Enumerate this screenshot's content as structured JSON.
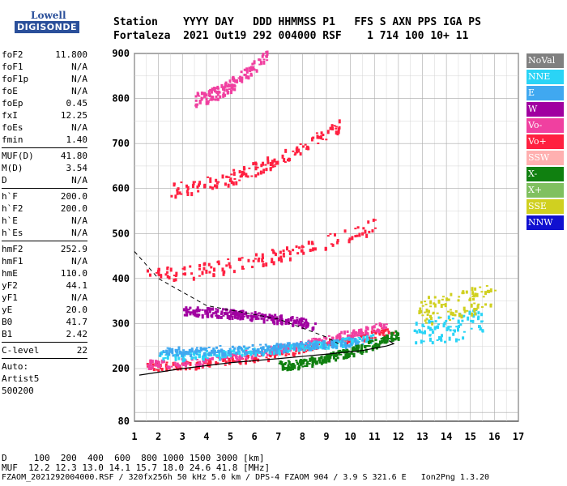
{
  "logo": {
    "top": "Lowell",
    "bottom": "DIGISONDE"
  },
  "header": {
    "line1": "Station    YYYY DAY   DDD HHMMSS P1   FFS S AXN PPS IGA PS",
    "line2": "Fortaleza  2021 Out19 292 004000 RSF    1 714 100 10+ 11"
  },
  "params": {
    "group1": [
      {
        "label": "foF2",
        "value": "11.800"
      },
      {
        "label": "foF1",
        "value": "N/A"
      },
      {
        "label": "foF1p",
        "value": "N/A"
      },
      {
        "label": "foE",
        "value": "N/A"
      },
      {
        "label": "foEp",
        "value": "0.45"
      },
      {
        "label": "fxI",
        "value": "12.25"
      },
      {
        "label": "foEs",
        "value": "N/A"
      },
      {
        "label": "fmin",
        "value": "1.40"
      }
    ],
    "group2": [
      {
        "label": "MUF(D)",
        "value": "41.80"
      },
      {
        "label": "M(D)",
        "value": "3.54"
      },
      {
        "label": "D",
        "value": "N/A"
      }
    ],
    "group3": [
      {
        "label": "h`F",
        "value": "200.0"
      },
      {
        "label": "h`F2",
        "value": "200.0"
      },
      {
        "label": "h`E",
        "value": "N/A"
      },
      {
        "label": "h`Es",
        "value": "N/A"
      }
    ],
    "group4": [
      {
        "label": "hmF2",
        "value": "252.9"
      },
      {
        "label": "hmF1",
        "value": "N/A"
      },
      {
        "label": "hmE",
        "value": "110.0"
      },
      {
        "label": "yF2",
        "value": "44.1"
      },
      {
        "label": "yF1",
        "value": "N/A"
      },
      {
        "label": "yE",
        "value": "20.0"
      },
      {
        "label": "B0",
        "value": "41.7"
      },
      {
        "label": "B1",
        "value": "2.42"
      }
    ],
    "group5": [
      {
        "label": "C-level",
        "value": "22"
      }
    ],
    "auto": [
      "Auto:",
      "Artist5",
      "500200"
    ]
  },
  "legend": [
    {
      "label": "NoVal",
      "color": "#808080"
    },
    {
      "label": "NNE",
      "color": "#2ad4f6"
    },
    {
      "label": "E",
      "color": "#40a8f0"
    },
    {
      "label": "W",
      "color": "#a000a0"
    },
    {
      "label": "Vo-",
      "color": "#f040a0"
    },
    {
      "label": "Vo+",
      "color": "#ff2040"
    },
    {
      "label": "SSW",
      "color": "#ffb0b0"
    },
    {
      "label": "X-",
      "color": "#108010"
    },
    {
      "label": "X+",
      "color": "#80c060"
    },
    {
      "label": "SSE",
      "color": "#d0d020"
    },
    {
      "label": "NNW",
      "color": "#1010d0"
    }
  ],
  "footer": {
    "line1": "D     100  200  400  600  800 1000 1500 3000 [km]",
    "line2": "MUF  12.2 12.3 13.0 14.1 15.7 18.0 24.6 41.8 [MHz]",
    "line3": "FZAOM_2021292004000.RSF / 320fx256h 50 kHz 5.0 km / DPS-4 FZAOM 904 / 3.9 S 321.6 E   Ion2Png 1.3.20"
  },
  "chart_data": {
    "type": "scatter",
    "xlabel": "",
    "ylabel": "",
    "xlim": [
      1,
      17
    ],
    "ylim": [
      80,
      900
    ],
    "x_ticks": [
      1,
      2,
      3,
      4,
      5,
      6,
      7,
      8,
      9,
      10,
      11,
      12,
      13,
      14,
      15,
      16,
      17
    ],
    "y_ticks": [
      80,
      200,
      300,
      400,
      500,
      600,
      700,
      800,
      900
    ],
    "grid": true,
    "legend_position": "right",
    "traces": [
      {
        "name": "Vo+",
        "mode": "echo",
        "start": [
          1.5,
          205
        ],
        "end": [
          11.8,
          290
        ]
      },
      {
        "name": "Vo-",
        "mode": "echo",
        "start": [
          1.5,
          212
        ],
        "end": [
          11.5,
          300
        ]
      },
      {
        "name": "NNE",
        "mode": "echo",
        "start": [
          2.0,
          230
        ],
        "end": [
          11.0,
          270
        ]
      },
      {
        "name": "E",
        "mode": "echo",
        "start": [
          2.0,
          240
        ],
        "end": [
          10.5,
          262
        ]
      },
      {
        "name": "X-",
        "mode": "echo",
        "start": [
          7.0,
          210
        ],
        "end": [
          12.0,
          280
        ]
      },
      {
        "name": "W",
        "mode": "echo",
        "start": [
          3.0,
          330
        ],
        "end": [
          8.5,
          300
        ]
      },
      {
        "name": "Vo+",
        "mode": "multi-hop",
        "start": [
          1.5,
          410
        ],
        "end": [
          11.0,
          520
        ]
      },
      {
        "name": "Vo+",
        "mode": "multi-hop",
        "start": [
          2.5,
          600
        ],
        "end": [
          9.5,
          740
        ]
      },
      {
        "name": "Vo-",
        "mode": "multi-hop",
        "start": [
          3.5,
          800
        ],
        "end": [
          6.5,
          900
        ]
      },
      {
        "name": "NNE",
        "mode": "spread",
        "start": [
          12.5,
          280
        ],
        "end": [
          15.5,
          310
        ]
      },
      {
        "name": "SSE",
        "mode": "spread",
        "start": [
          12.8,
          330
        ],
        "end": [
          16.0,
          370
        ]
      }
    ],
    "profile_curve": [
      [
        1.2,
        185
      ],
      [
        3,
        200
      ],
      [
        5,
        213
      ],
      [
        7,
        222
      ],
      [
        9,
        232
      ],
      [
        10.5,
        240
      ],
      [
        11.5,
        250
      ],
      [
        11.8,
        255
      ],
      [
        11.6,
        262
      ]
    ],
    "muf_curve": [
      [
        1,
        460
      ],
      [
        2,
        400
      ],
      [
        3,
        370
      ],
      [
        4,
        340
      ],
      [
        5,
        330
      ],
      [
        6,
        320
      ],
      [
        7,
        310
      ],
      [
        8,
        290
      ],
      [
        9,
        270
      ],
      [
        9.5,
        255
      ]
    ]
  }
}
